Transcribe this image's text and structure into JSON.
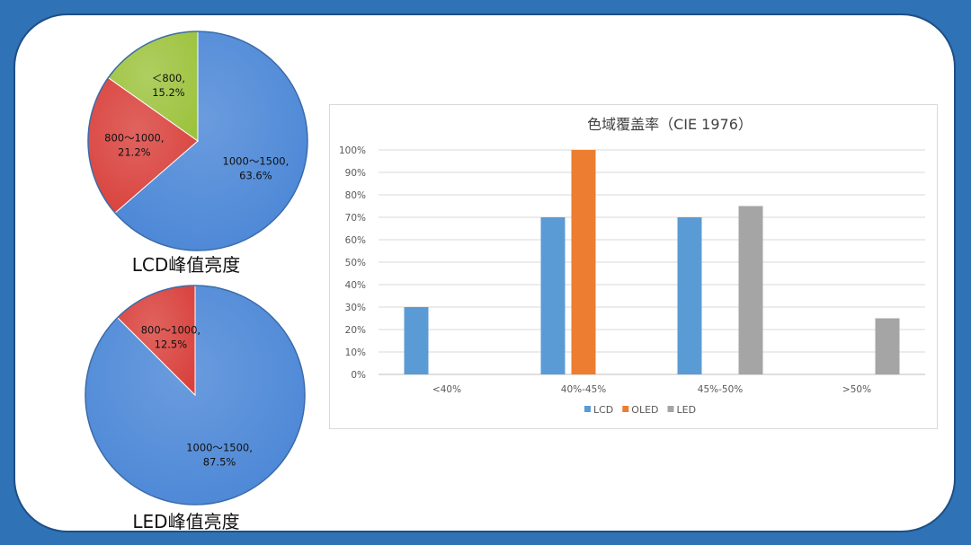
{
  "colors": {
    "background": "#2f72b5",
    "pie_blue": "#4a86d6",
    "pie_red": "#d9413c",
    "pie_green": "#9dc33e",
    "bar_lcd": "#5b9bd5",
    "bar_oled": "#ed7d31",
    "bar_led": "#a5a5a5"
  },
  "chart_data": [
    {
      "type": "pie",
      "title": "LCD峰值亮度",
      "slices": [
        {
          "label": "1000～1500,",
          "pct_label": "63.6%",
          "value": 63.6,
          "color": "#4a86d6"
        },
        {
          "label": "800～1000,",
          "pct_label": "21.2%",
          "value": 21.2,
          "color": "#d9413c"
        },
        {
          "label": "＜800,",
          "pct_label": "15.2%",
          "value": 15.2,
          "color": "#9dc33e"
        }
      ]
    },
    {
      "type": "pie",
      "title": "LED峰值亮度",
      "slices": [
        {
          "label": "1000～1500,",
          "pct_label": "87.5%",
          "value": 87.5,
          "color": "#4a86d6"
        },
        {
          "label": "800～1000,",
          "pct_label": "12.5%",
          "value": 12.5,
          "color": "#d9413c"
        }
      ]
    },
    {
      "type": "bar",
      "title": "色域覆盖率（CIE 1976）",
      "categories": [
        "<40%",
        "40%-45%",
        "45%-50%",
        ">50%"
      ],
      "series": [
        {
          "name": "LCD",
          "values": [
            30,
            70,
            70,
            null
          ],
          "color": "#5b9bd5"
        },
        {
          "name": "OLED",
          "values": [
            null,
            100,
            null,
            null
          ],
          "color": "#ed7d31"
        },
        {
          "name": "LED",
          "values": [
            null,
            null,
            75,
            25
          ],
          "color": "#a5a5a5"
        }
      ],
      "ylim": [
        0,
        100
      ],
      "yticks": [
        "0%",
        "10%",
        "20%",
        "30%",
        "40%",
        "50%",
        "60%",
        "70%",
        "80%",
        "90%",
        "100%"
      ],
      "grid": true,
      "legend": "bottom"
    }
  ]
}
